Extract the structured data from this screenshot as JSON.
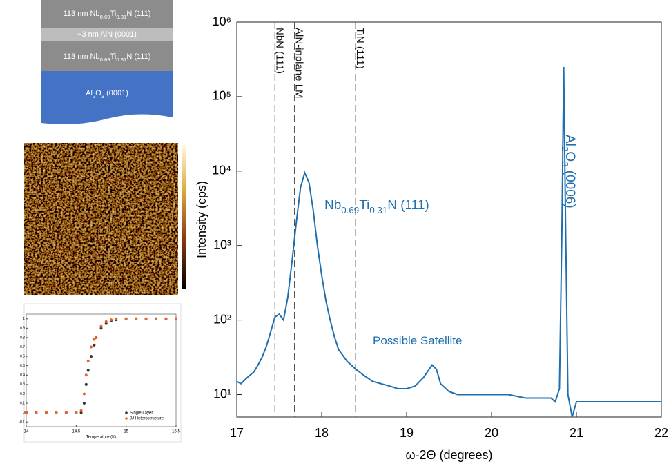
{
  "layer_stack": {
    "layers": [
      {
        "segments": [
          "113 nm Nb",
          "0.69",
          "Ti",
          "0.31",
          "N (111)"
        ]
      },
      {
        "segments": [
          "~3 nm AlN (0001)"
        ]
      },
      {
        "segments": [
          "113 nm Nb",
          "0.69",
          "Ti",
          "0.31",
          "N (111)"
        ]
      },
      {
        "segments": [
          "Al",
          "2",
          "O",
          "3",
          " (0001)"
        ]
      }
    ]
  },
  "chart_data": [
    {
      "type": "line",
      "x_label": "ω-2Θ (degrees)",
      "y_label": "Intensity (cps)",
      "log_y": true,
      "xlim": [
        17,
        22
      ],
      "xticks": [
        17,
        18,
        19,
        20,
        21,
        22
      ],
      "ylim": [
        5,
        1000000
      ],
      "yticks": [
        {
          "value": 10,
          "label": "10¹"
        },
        {
          "value": 100,
          "label": "10²"
        },
        {
          "value": 1000,
          "label": "10³"
        },
        {
          "value": 10000,
          "label": "10⁴"
        },
        {
          "value": 100000,
          "label": "10⁵"
        },
        {
          "value": 1000000,
          "label": "10⁶"
        }
      ],
      "x": [
        17.0,
        17.05,
        17.1,
        17.15,
        17.2,
        17.25,
        17.3,
        17.35,
        17.4,
        17.45,
        17.5,
        17.55,
        17.6,
        17.65,
        17.7,
        17.75,
        17.8,
        17.85,
        17.9,
        17.95,
        18.0,
        18.05,
        18.1,
        18.15,
        18.2,
        18.3,
        18.4,
        18.5,
        18.6,
        18.7,
        18.8,
        18.9,
        19.0,
        19.1,
        19.2,
        19.3,
        19.35,
        19.4,
        19.5,
        19.6,
        19.8,
        20.0,
        20.2,
        20.4,
        20.6,
        20.7,
        20.75,
        20.8,
        20.83,
        20.85,
        20.87,
        20.9,
        20.95,
        21.0,
        21.2,
        21.4,
        21.6,
        21.8,
        22.0
      ],
      "series": [
        {
          "color": "#1f6fae",
          "values": [
            15,
            14,
            16,
            18,
            20,
            25,
            32,
            45,
            70,
            110,
            120,
            100,
            200,
            600,
            2000,
            6000,
            9500,
            7000,
            3000,
            1000,
            400,
            180,
            100,
            60,
            40,
            28,
            22,
            18,
            15,
            14,
            13,
            12,
            12,
            13,
            17,
            25,
            22,
            14,
            11,
            10,
            10,
            10,
            10,
            9,
            9,
            9,
            8,
            12,
            2000,
            250000,
            3000,
            10,
            5,
            8,
            8,
            8,
            8,
            8,
            8
          ]
        }
      ],
      "reference_lines": [
        {
          "x": 17.45,
          "label": "NbN (111)"
        },
        {
          "x": 17.68,
          "label": "AlN-inplane LM"
        },
        {
          "x": 18.4,
          "label": "TiN (111)"
        }
      ],
      "annotations": [
        {
          "segments": [
            "Nb",
            "0.69",
            "Ti",
            "0.31",
            "N (111)"
          ]
        },
        {
          "segments": [
            "Possible Satellite"
          ]
        },
        {
          "segments": [
            "Al",
            "2",
            "O",
            "3",
            " (0006)"
          ]
        }
      ]
    },
    {
      "type": "scatter",
      "x_label": "Temperature (K)",
      "xlim": [
        14,
        15.5
      ],
      "xticks": [
        14,
        14.5,
        15,
        15.5
      ],
      "ylim": [
        -0.15,
        1.05
      ],
      "yticks": [
        -0.1,
        0,
        0.1,
        0.2,
        0.3,
        0.4,
        0.5,
        0.6,
        0.7,
        0.8,
        0.9,
        1
      ],
      "legend": "lower right",
      "x": [
        14,
        14.1,
        14.2,
        14.3,
        14.4,
        14.5,
        14.55,
        14.58,
        14.6,
        14.62,
        14.65,
        14.68,
        14.7,
        14.75,
        14.8,
        14.85,
        14.9,
        15,
        15.1,
        15.2,
        15.3,
        15.4,
        15.5
      ],
      "series": [
        {
          "name": "Single Layer",
          "color": "#333333",
          "values": [
            0,
            0,
            0,
            0,
            0,
            0,
            0,
            0.1,
            0.3,
            0.45,
            0.6,
            0.72,
            0.8,
            0.9,
            0.95,
            0.98,
            0.99,
            1,
            1,
            1,
            1,
            1,
            1
          ]
        },
        {
          "name": "JJ Heterostructure",
          "color": "#e8622a",
          "values": [
            0,
            0,
            0,
            0,
            0,
            0,
            0.02,
            0.2,
            0.4,
            0.55,
            0.7,
            0.78,
            0.8,
            0.92,
            0.97,
            0.99,
            1,
            1,
            1,
            1,
            1,
            1,
            1
          ]
        }
      ]
    }
  ]
}
